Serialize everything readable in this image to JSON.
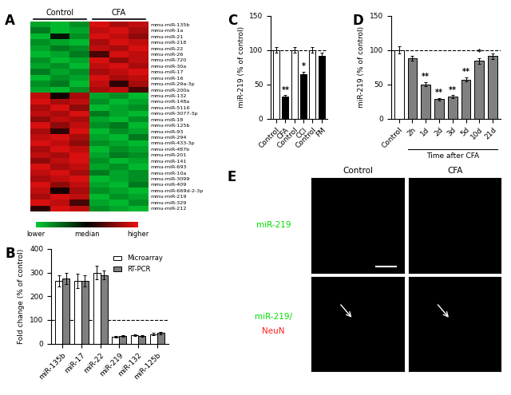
{
  "chart_data": [
    {
      "type": "heatmap",
      "title": "A",
      "column_groups": [
        {
          "label": "Control",
          "columns": 3
        },
        {
          "label": "CFA",
          "columns": 3
        }
      ],
      "rows": [
        "mmu-miR-135b",
        "mmu-miR-1a",
        "mmu-miR-21",
        "mmu-miR-218",
        "mmu-miR-22",
        "mmu-miR-26",
        "mmu-miR-720",
        "mmu-miR-30a",
        "mmu-miR-17",
        "mmu-miR-16",
        "mmu-miR-29a-3p",
        "mmu-miR-200a",
        "mmu-miR-132",
        "mmu-miR-148a",
        "mmu-miR-5116",
        "mmu-miR-3077-3p",
        "mmu-miR-18",
        "mmu-miR-125b",
        "mmu-miR-93",
        "mmu-miR-294",
        "mmu-miR-433-3p",
        "mmu-miR-487b",
        "mmu-miR-201",
        "mmu-miR-141",
        "mmu-miR-693",
        "mmu-miR-10a",
        "mmu-miR-3099",
        "mmu-miR-409",
        "mmu-miR-669d-2-3p",
        "mmu-miR-219",
        "mmu-miR-329",
        "mmu-miR-212"
      ],
      "cells": [
        [
          -0.8,
          -0.9,
          -0.7,
          0.9,
          0.7,
          0.8
        ],
        [
          -0.6,
          -0.9,
          -0.8,
          0.8,
          0.9,
          0.7
        ],
        [
          -0.9,
          -0.1,
          -0.7,
          0.9,
          0.8,
          0.6
        ],
        [
          -0.7,
          -0.8,
          -0.9,
          0.7,
          0.9,
          0.8
        ],
        [
          -0.8,
          -0.6,
          -0.7,
          0.8,
          0.7,
          0.9
        ],
        [
          -0.9,
          -0.8,
          -0.6,
          0.3,
          0.9,
          0.8
        ],
        [
          -0.7,
          -0.9,
          -0.8,
          0.9,
          0.6,
          0.8
        ],
        [
          -0.8,
          -0.7,
          -0.9,
          0.8,
          0.9,
          0.7
        ],
        [
          -0.6,
          -0.8,
          -0.7,
          0.7,
          0.8,
          0.9
        ],
        [
          -0.9,
          -0.7,
          -0.8,
          0.9,
          0.7,
          0.8
        ],
        [
          -0.7,
          -0.6,
          -0.9,
          0.8,
          0.2,
          0.7
        ],
        [
          -0.8,
          -0.9,
          -0.7,
          0.7,
          0.8,
          0.3
        ],
        [
          0.8,
          0.1,
          0.7,
          -0.8,
          -0.7,
          -0.9
        ],
        [
          0.9,
          0.7,
          0.8,
          -0.7,
          -0.9,
          -0.8
        ],
        [
          0.7,
          0.9,
          0.6,
          -0.9,
          -0.8,
          -0.7
        ],
        [
          0.8,
          0.7,
          0.9,
          -0.6,
          -0.8,
          -0.9
        ],
        [
          0.6,
          0.8,
          0.7,
          -0.8,
          -0.9,
          -0.7
        ],
        [
          0.9,
          0.6,
          0.8,
          -0.7,
          -0.6,
          -0.9
        ],
        [
          0.7,
          0.2,
          0.9,
          -0.9,
          -0.7,
          -0.8
        ],
        [
          0.8,
          0.9,
          0.7,
          -0.8,
          -0.9,
          -0.6
        ],
        [
          0.9,
          0.8,
          0.6,
          -0.7,
          -0.8,
          -0.9
        ],
        [
          0.7,
          0.9,
          0.8,
          -0.9,
          -0.7,
          -0.8
        ],
        [
          0.8,
          0.7,
          0.9,
          -0.8,
          -0.6,
          -0.7
        ],
        [
          0.6,
          0.8,
          0.9,
          -0.7,
          -0.9,
          -0.8
        ],
        [
          0.9,
          0.7,
          0.8,
          -0.8,
          -0.7,
          -0.9
        ],
        [
          0.8,
          0.9,
          0.7,
          -0.6,
          -0.8,
          -0.7
        ],
        [
          0.7,
          0.8,
          0.9,
          -0.9,
          -0.8,
          -0.7
        ],
        [
          0.9,
          0.6,
          0.8,
          -0.8,
          -0.9,
          -0.6
        ],
        [
          0.8,
          0.1,
          0.7,
          -0.7,
          -0.8,
          -0.9
        ],
        [
          0.7,
          0.9,
          0.8,
          -0.9,
          -0.7,
          -0.8
        ],
        [
          0.9,
          0.8,
          0.3,
          -0.8,
          -0.9,
          -0.7
        ],
        [
          0.2,
          0.9,
          0.8,
          -0.7,
          -0.8,
          -0.9
        ]
      ],
      "clim": [
        -1,
        1
      ],
      "colorbar_ticks": [
        {
          "value": -1,
          "label": "lower"
        },
        {
          "value": 0,
          "label": "median"
        },
        {
          "value": 1,
          "label": "higher"
        }
      ]
    },
    {
      "type": "bar",
      "title": "B",
      "categories": [
        "miR-135b",
        "miR-17",
        "miR-22",
        "miR-219",
        "miR-132",
        "miR-125b"
      ],
      "series": [
        {
          "name": "Microarray",
          "color": "#ffffff",
          "values": [
            265,
            265,
            300,
            30,
            35,
            40
          ],
          "errors": [
            25,
            30,
            30,
            4,
            4,
            5
          ]
        },
        {
          "name": "RT-PCR",
          "color": "#808080",
          "values": [
            275,
            265,
            290,
            33,
            33,
            45
          ],
          "errors": [
            25,
            25,
            20,
            4,
            4,
            5
          ]
        }
      ],
      "y_label": "Fold change (% of control)",
      "ylim": [
        0,
        400
      ],
      "yticks": [
        0,
        100,
        200,
        300,
        400
      ],
      "reference_line": 100,
      "legend": "upper right"
    },
    {
      "type": "bar",
      "title": "C",
      "categories": [
        "Control",
        "CFA",
        "Control",
        "CCI",
        "Control",
        "FM"
      ],
      "values": [
        100,
        32,
        100,
        65,
        100,
        92
      ],
      "errors": [
        4,
        2,
        4,
        3,
        4,
        4
      ],
      "colors": [
        "#ffffff",
        "#000000",
        "#ffffff",
        "#000000",
        "#ffffff",
        "#000000"
      ],
      "annotations": [
        null,
        "**",
        null,
        "*",
        null,
        null
      ],
      "y_label": "miR-219 (% of control)",
      "ylim": [
        0,
        150
      ],
      "yticks": [
        0,
        50,
        100,
        150
      ],
      "reference_line": 100
    },
    {
      "type": "bar",
      "title": "D",
      "categories": [
        "Control",
        "2h",
        "1d",
        "2d",
        "3d",
        "5d",
        "10d",
        "21d"
      ],
      "values": [
        100,
        88,
        50,
        28,
        32,
        57,
        84,
        91
      ],
      "errors": [
        5,
        4,
        3,
        2,
        2,
        3,
        4,
        4
      ],
      "colors": [
        "#ffffff",
        "#808080",
        "#808080",
        "#808080",
        "#808080",
        "#808080",
        "#808080",
        "#808080"
      ],
      "annotations": [
        null,
        null,
        "**",
        "**",
        "**",
        "**",
        "*",
        null
      ],
      "x_label": "Time after CFA",
      "y_label": "miR-219 (% of control)",
      "ylim": [
        0,
        150
      ],
      "yticks": [
        0,
        50,
        100,
        150
      ],
      "reference_line": 100
    },
    {
      "type": "image_grid",
      "title": "E",
      "columns": [
        "Control",
        "CFA"
      ],
      "rows": [
        [
          {
            "text": "miR-219",
            "color": "#00dd00"
          }
        ],
        [
          {
            "text": "miR-219/",
            "color": "#00dd00"
          },
          {
            "text": "NeuN",
            "color": "#ff2020"
          }
        ]
      ]
    }
  ]
}
